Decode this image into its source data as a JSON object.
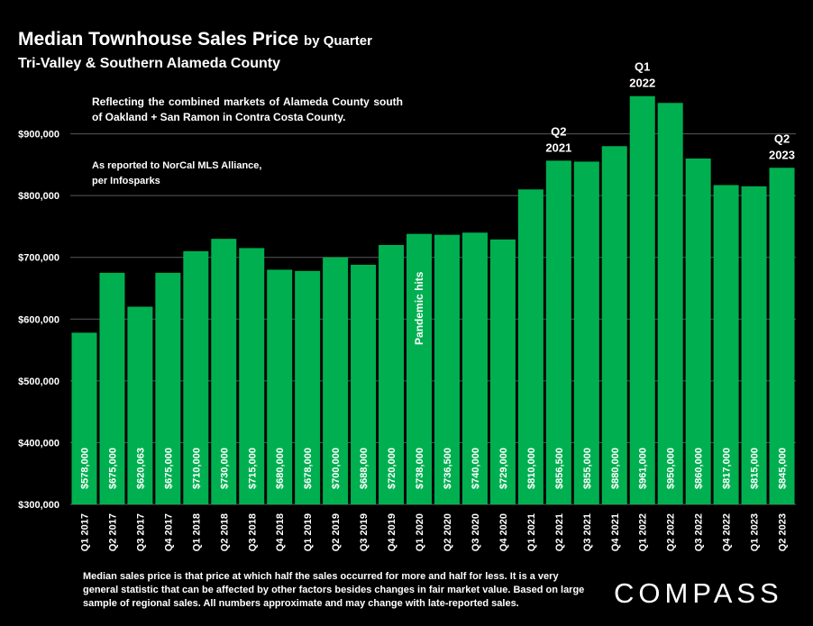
{
  "header": {
    "title": "Median Townhouse Sales Price",
    "title_suffix": "by Quarter",
    "subtitle": "Tri-Valley & Southern Alameda County"
  },
  "notes": {
    "description": "Reflecting the combined markets of Alameda County south of Oakland + San Ramon in Contra Costa County.",
    "source": "As reported to NorCal MLS Alliance, per Infosparks",
    "footnote": "Median sales price is that price at which half the sales occurred for more and half for less. It is a very general statistic that can be affected by other factors besides changes in fair market value. Based on large sample of regional sales. All numbers approximate and may change with late-reported sales."
  },
  "brand": {
    "logo_text": "COMPASS"
  },
  "chart_data": {
    "type": "bar",
    "title": "Median Townhouse Sales Price by Quarter",
    "xlabel": "",
    "ylabel": "",
    "ylim": [
      300000,
      1000000
    ],
    "yticks": [
      300000,
      400000,
      500000,
      600000,
      700000,
      800000,
      900000
    ],
    "ytick_labels": [
      "$300,000",
      "$400,000",
      "$500,000",
      "$600,000",
      "$700,000",
      "$800,000",
      "$900,000"
    ],
    "grid": true,
    "bar_color": "#00b050",
    "gridline_color": "#5a5a5a",
    "categories": [
      "Q1 2017",
      "Q2 2017",
      "Q3 2017",
      "Q4 2017",
      "Q1 2018",
      "Q2 2018",
      "Q3 2018",
      "Q4 2018",
      "Q1 2019",
      "Q2 2019",
      "Q3 2019",
      "Q4 2019",
      "Q1 2020",
      "Q2 2020",
      "Q3 2020",
      "Q4 2020",
      "Q1 2021",
      "Q2 2021",
      "Q3 2021",
      "Q4 2021",
      "Q1 2022",
      "Q2 2022",
      "Q3 2022",
      "Q4 2022",
      "Q1 2023",
      "Q2 2023"
    ],
    "values": [
      578000,
      675000,
      620063,
      675000,
      710000,
      730000,
      715000,
      680000,
      678000,
      700000,
      688000,
      720000,
      738000,
      736500,
      740000,
      729000,
      810000,
      856500,
      855000,
      880000,
      961000,
      950000,
      860000,
      817000,
      815000,
      845000
    ],
    "value_labels": [
      "$578,000",
      "$675,000",
      "$620,063",
      "$675,000",
      "$710,000",
      "$730,000",
      "$715,000",
      "$680,000",
      "$678,000",
      "$700,000",
      "$688,000",
      "$720,000",
      "$738,000",
      "$736,500",
      "$740,000",
      "$729,000",
      "$810,000",
      "$856,500",
      "$855,000",
      "$880,000",
      "$961,000",
      "$950,000",
      "$860,000",
      "$817,000",
      "$815,000",
      "$845,000"
    ],
    "annotations": [
      {
        "category_index": 17,
        "lines": [
          "Q2",
          "2021"
        ]
      },
      {
        "category_index": 20,
        "lines": [
          "Q1",
          "2022"
        ]
      },
      {
        "category_index": 25,
        "lines": [
          "Q2",
          "2023"
        ]
      },
      {
        "category_index": 12,
        "text": "Pandemic hits",
        "value": 530000
      }
    ]
  }
}
